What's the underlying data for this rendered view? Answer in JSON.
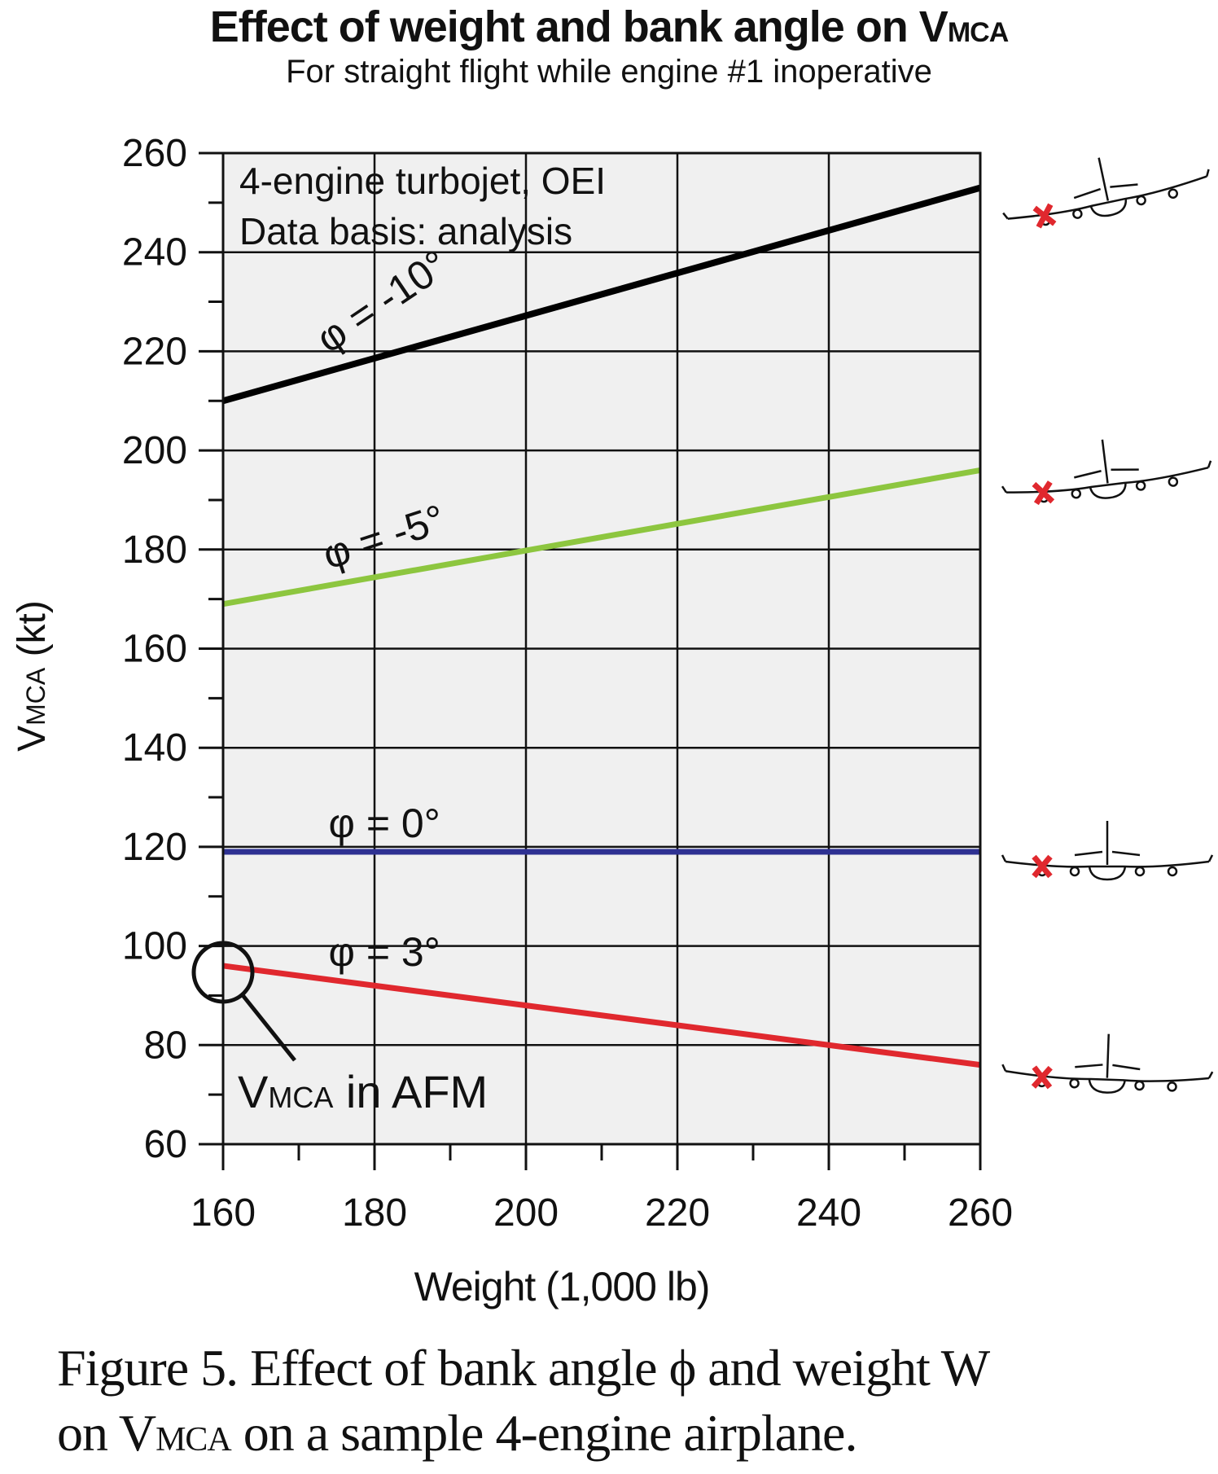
{
  "chart_data": {
    "type": "line",
    "title": "Effect of weight and bank angle on V",
    "title_subscript": "MCA",
    "subtitle": "For straight flight while engine #1 inoperative",
    "xlabel": "Weight (1,000 lb)",
    "ylabel_main": "V",
    "ylabel_sub": "MCA",
    "ylabel_unit": " (kt)",
    "xlim": [
      160,
      260
    ],
    "ylim": [
      60,
      260
    ],
    "x_ticks": [
      160,
      180,
      200,
      220,
      240,
      260
    ],
    "x_minor_ticks": [
      170,
      190,
      210,
      230,
      250
    ],
    "y_ticks": [
      60,
      80,
      100,
      120,
      140,
      160,
      180,
      200,
      220,
      240,
      260
    ],
    "y_minor_ticks": [
      70,
      90,
      110,
      130,
      150,
      170,
      190,
      210,
      230,
      250
    ],
    "grid": true,
    "legend": "none",
    "annotations": {
      "info_line1": "4-engine turbojet, OEI",
      "info_line2": "Data basis: analysis",
      "afm_main": "V",
      "afm_sub": "MCA",
      "afm_rest": " in AFM"
    },
    "series": [
      {
        "name": "φ = -10°",
        "color": "#000000",
        "x": [
          160,
          260
        ],
        "y": [
          210,
          253
        ]
      },
      {
        "name": "φ = -5°",
        "color": "#8dc63f",
        "x": [
          160,
          260
        ],
        "y": [
          169,
          196
        ]
      },
      {
        "name": "φ = 0°",
        "color": "#2e3192",
        "x": [
          160,
          260
        ],
        "y": [
          119,
          119
        ]
      },
      {
        "name": "φ = 3°",
        "color": "#e0282e",
        "x": [
          160,
          260
        ],
        "y": [
          96,
          76
        ]
      }
    ],
    "airplane_icons": [
      {
        "series": "φ = -10°",
        "bank": "left wing down",
        "inoperative_engine_marker": "red X"
      },
      {
        "series": "φ = -5°",
        "bank": "left wing slightly down",
        "inoperative_engine_marker": "red X"
      },
      {
        "series": "φ = 0°",
        "bank": "wings level",
        "inoperative_engine_marker": "red X"
      },
      {
        "series": "φ = 3°",
        "bank": "right wing slightly down",
        "inoperative_engine_marker": "red X"
      }
    ]
  },
  "caption": {
    "line1": "Figure 5. Effect of bank angle ϕ and weight W",
    "line2_pre": "on V",
    "line2_sub": "MCA",
    "line2_post": " on a sample 4-engine airplane."
  },
  "colors": {
    "plot_background": "#f0f0f0",
    "x_marker": "#e0282e"
  }
}
